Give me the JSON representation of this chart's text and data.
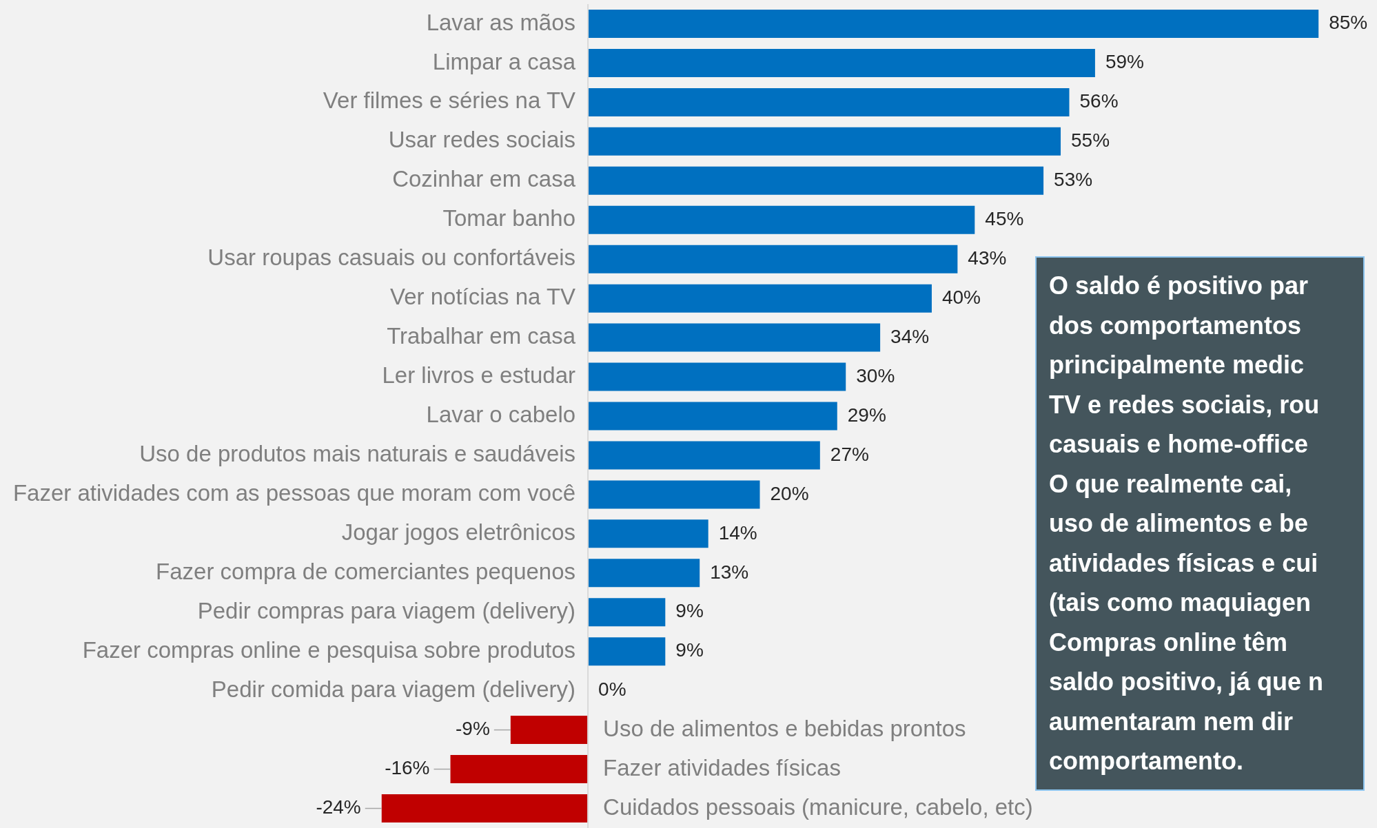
{
  "chart_data": {
    "type": "bar",
    "orientation": "horizontal",
    "value_labels": [
      "85%",
      "59%",
      "56%",
      "55%",
      "53%",
      "45%",
      "43%",
      "40%",
      "34%",
      "30%",
      "29%",
      "27%",
      "20%",
      "14%",
      "13%",
      "9%",
      "9%",
      "0%",
      "-9%",
      "-16%",
      "-24%"
    ],
    "categories": [
      "Lavar as mãos",
      "Limpar a casa",
      "Ver filmes e séries na TV",
      "Usar redes sociais",
      "Cozinhar em casa",
      "Tomar banho",
      "Usar roupas casuais ou confortáveis",
      "Ver notícias na TV",
      "Trabalhar em casa",
      "Ler livros e estudar",
      "Lavar o cabelo",
      "Uso de produtos mais naturais e saudáveis",
      "Fazer atividades com as pessoas que moram com você",
      "Jogar jogos eletrônicos",
      "Fazer compra de comerciantes pequenos",
      "Pedir compras para viagem (delivery)",
      "Fazer compras online e pesquisa sobre produtos",
      "Pedir comida para viagem (delivery)",
      "Uso de alimentos e bebidas prontos",
      "Fazer atividades físicas",
      "Cuidados pessoais (manicure, cabelo, etc)"
    ],
    "values": [
      85,
      59,
      56,
      55,
      53,
      45,
      43,
      40,
      34,
      30,
      29,
      27,
      20,
      14,
      13,
      9,
      9,
      0,
      -9,
      -16,
      -24
    ],
    "colors": [
      "#0070c0",
      "#0070c0",
      "#0070c0",
      "#0070c0",
      "#0070c0",
      "#0070c0",
      "#0070c0",
      "#0070c0",
      "#0070c0",
      "#0070c0",
      "#0070c0",
      "#0070c0",
      "#0070c0",
      "#0070c0",
      "#0070c0",
      "#0070c0",
      "#0070c0",
      "#0070c0",
      "#c00000",
      "#c00000",
      "#c00000"
    ],
    "annotations": [
      "O saldo é positivo par\ndos comportamentos\nprincipalmente medic\nTV e redes sociais, rou\ncasuais e home-office\nO que realmente cai,\nuso de alimentos e be\natividades físicas e cui\n(tais como maquiagen\nCompras online têm\nsaldo positivo, já que n\naumentaram nem dir\ncomportamento."
    ]
  }
}
